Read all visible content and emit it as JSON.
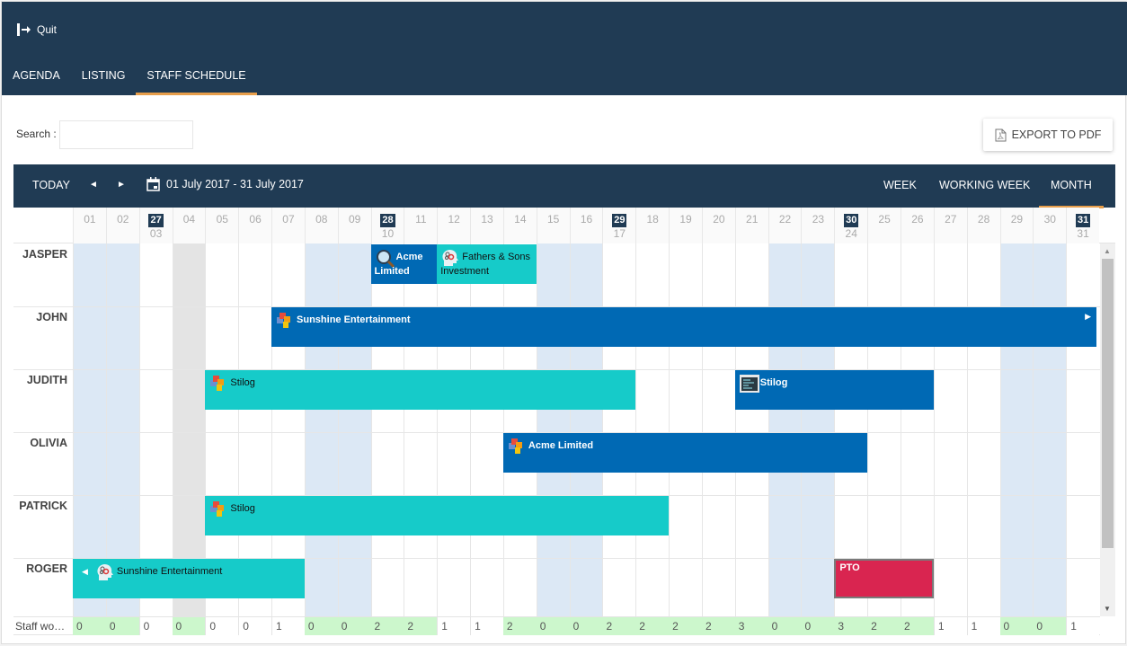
{
  "header": {
    "quit_label": "Quit",
    "tabs": [
      {
        "label": "AGENDA",
        "active": false
      },
      {
        "label": "LISTING",
        "active": false
      },
      {
        "label": "STAFF SCHEDULE",
        "active": true
      }
    ]
  },
  "search": {
    "label": "Search :",
    "value": "",
    "placeholder": ""
  },
  "export": {
    "label": "EXPORT TO PDF"
  },
  "toolbar": {
    "today_label": "TODAY",
    "prev_icon": "◄",
    "next_icon": "►",
    "date_range": "01 July 2017 - 31 July 2017",
    "views": [
      {
        "label": "WEEK",
        "active": false
      },
      {
        "label": "WORKING WEEK",
        "active": false
      },
      {
        "label": "MONTH",
        "active": true
      }
    ]
  },
  "colors": {
    "header_bg": "#203b54",
    "accent": "#e79e4b",
    "event_blue": "#0069b4",
    "event_teal": "#16cbc9",
    "event_pto": "#d92550",
    "weekend": "#dce8f5",
    "footer_green": "#ccf7cc"
  },
  "days": [
    {
      "d": "01",
      "type": "weekend"
    },
    {
      "d": "02",
      "type": "weekend"
    },
    {
      "d": "03",
      "week": "27",
      "type": "normal"
    },
    {
      "d": "04",
      "type": "holiday"
    },
    {
      "d": "05",
      "type": "normal"
    },
    {
      "d": "06",
      "type": "normal"
    },
    {
      "d": "07",
      "type": "normal"
    },
    {
      "d": "08",
      "type": "weekend"
    },
    {
      "d": "09",
      "type": "weekend"
    },
    {
      "d": "10",
      "week": "28",
      "type": "normal"
    },
    {
      "d": "11",
      "type": "normal"
    },
    {
      "d": "12",
      "type": "normal"
    },
    {
      "d": "13",
      "type": "normal"
    },
    {
      "d": "14",
      "type": "normal"
    },
    {
      "d": "15",
      "type": "weekend"
    },
    {
      "d": "16",
      "type": "weekend"
    },
    {
      "d": "17",
      "week": "29",
      "type": "normal"
    },
    {
      "d": "18",
      "type": "normal"
    },
    {
      "d": "19",
      "type": "normal"
    },
    {
      "d": "20",
      "type": "normal"
    },
    {
      "d": "21",
      "type": "normal"
    },
    {
      "d": "22",
      "type": "weekend"
    },
    {
      "d": "23",
      "type": "weekend"
    },
    {
      "d": "24",
      "week": "30",
      "type": "normal"
    },
    {
      "d": "25",
      "type": "normal"
    },
    {
      "d": "26",
      "type": "normal"
    },
    {
      "d": "27",
      "type": "normal"
    },
    {
      "d": "28",
      "type": "normal"
    },
    {
      "d": "29",
      "type": "weekend"
    },
    {
      "d": "30",
      "type": "weekend"
    },
    {
      "d": "31",
      "week": "31",
      "type": "normal"
    }
  ],
  "staff": [
    {
      "name": "JASPER",
      "events": [
        {
          "title": "Acme Limited",
          "start": 10,
          "end": 11,
          "color": "blue",
          "icon": "magnifier-icon"
        },
        {
          "title": "Fathers & Sons Investment",
          "start": 12,
          "end": 14,
          "color": "teal",
          "icon": "head-gears-icon"
        }
      ]
    },
    {
      "name": "JOHN",
      "events": [
        {
          "title": "Sunshine Entertainment",
          "start": 7,
          "end": 31,
          "color": "blue",
          "icon": "puzzle-icon",
          "continues_right": true
        }
      ]
    },
    {
      "name": "JUDITH",
      "events": [
        {
          "title": "Stilog",
          "start": 5,
          "end": 17,
          "color": "teal",
          "icon": "puzzle-icon"
        },
        {
          "title": "Stilog",
          "start": 21,
          "end": 26,
          "color": "blue",
          "icon": "code-screen-icon"
        }
      ]
    },
    {
      "name": "OLIVIA",
      "events": [
        {
          "title": "Acme Limited",
          "start": 14,
          "end": 24,
          "color": "blue",
          "icon": "puzzle-icon"
        }
      ]
    },
    {
      "name": "PATRICK",
      "events": [
        {
          "title": "Stilog",
          "start": 5,
          "end": 18,
          "color": "teal",
          "icon": "puzzle-icon"
        }
      ]
    },
    {
      "name": "ROGER",
      "events": [
        {
          "title": "Sunshine Entertainment",
          "start": 1,
          "end": 7,
          "color": "teal",
          "icon": "head-gears-icon",
          "continues_left": true
        },
        {
          "title": "PTO",
          "start": 24,
          "end": 26,
          "color": "pto",
          "icon": ""
        }
      ]
    }
  ],
  "footer": {
    "label": "Staff wo…",
    "values": [
      0,
      0,
      0,
      0,
      0,
      0,
      1,
      0,
      0,
      2,
      2,
      1,
      1,
      2,
      0,
      0,
      2,
      2,
      2,
      2,
      3,
      0,
      0,
      3,
      2,
      2,
      1,
      1,
      0,
      0,
      1
    ],
    "green": [
      true,
      true,
      false,
      true,
      false,
      false,
      false,
      true,
      true,
      true,
      true,
      false,
      false,
      true,
      true,
      true,
      true,
      true,
      true,
      true,
      true,
      true,
      true,
      true,
      true,
      true,
      false,
      false,
      true,
      true,
      false
    ]
  }
}
